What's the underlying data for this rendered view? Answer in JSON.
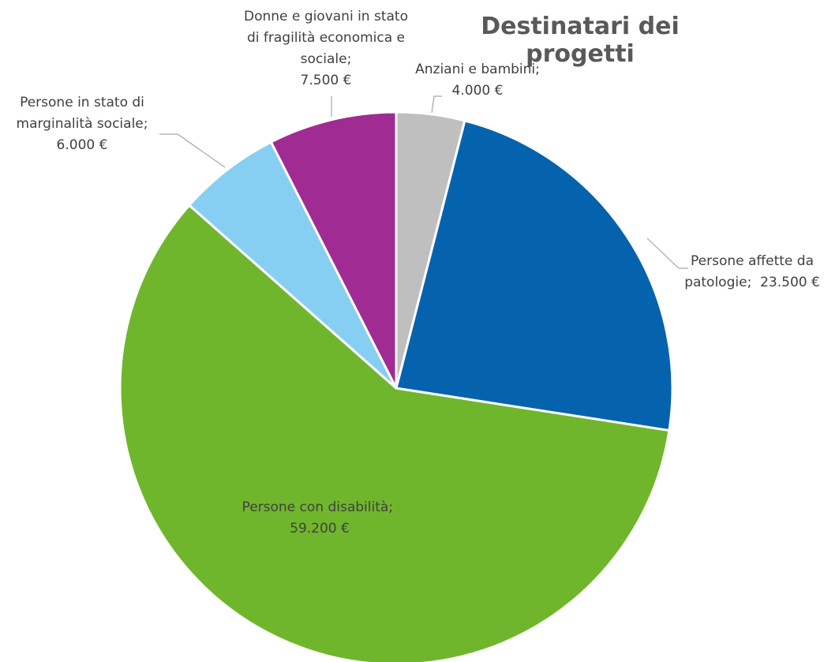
{
  "chart_data": {
    "type": "pie",
    "title": "Destinatari dei progetti",
    "categories": [
      "Anziani e bambini",
      "Persone affette da patologie",
      "Persone con disabilità",
      "Persone in stato di marginalità sociale",
      "Donne e giovani in stato di fragilità economica e sociale"
    ],
    "values": [
      4000,
      23500,
      59200,
      6000,
      7500
    ],
    "value_labels": [
      "4.000 €",
      "23.500 €",
      "59.200 €",
      "6.000 €",
      "7.500 €"
    ],
    "colors": [
      "#bfbfbf",
      "#0563ae",
      "#70b62c",
      "#87cef3",
      "#a02b93"
    ],
    "label_separator": ";",
    "start_angle": 0,
    "direction": "clockwise"
  }
}
